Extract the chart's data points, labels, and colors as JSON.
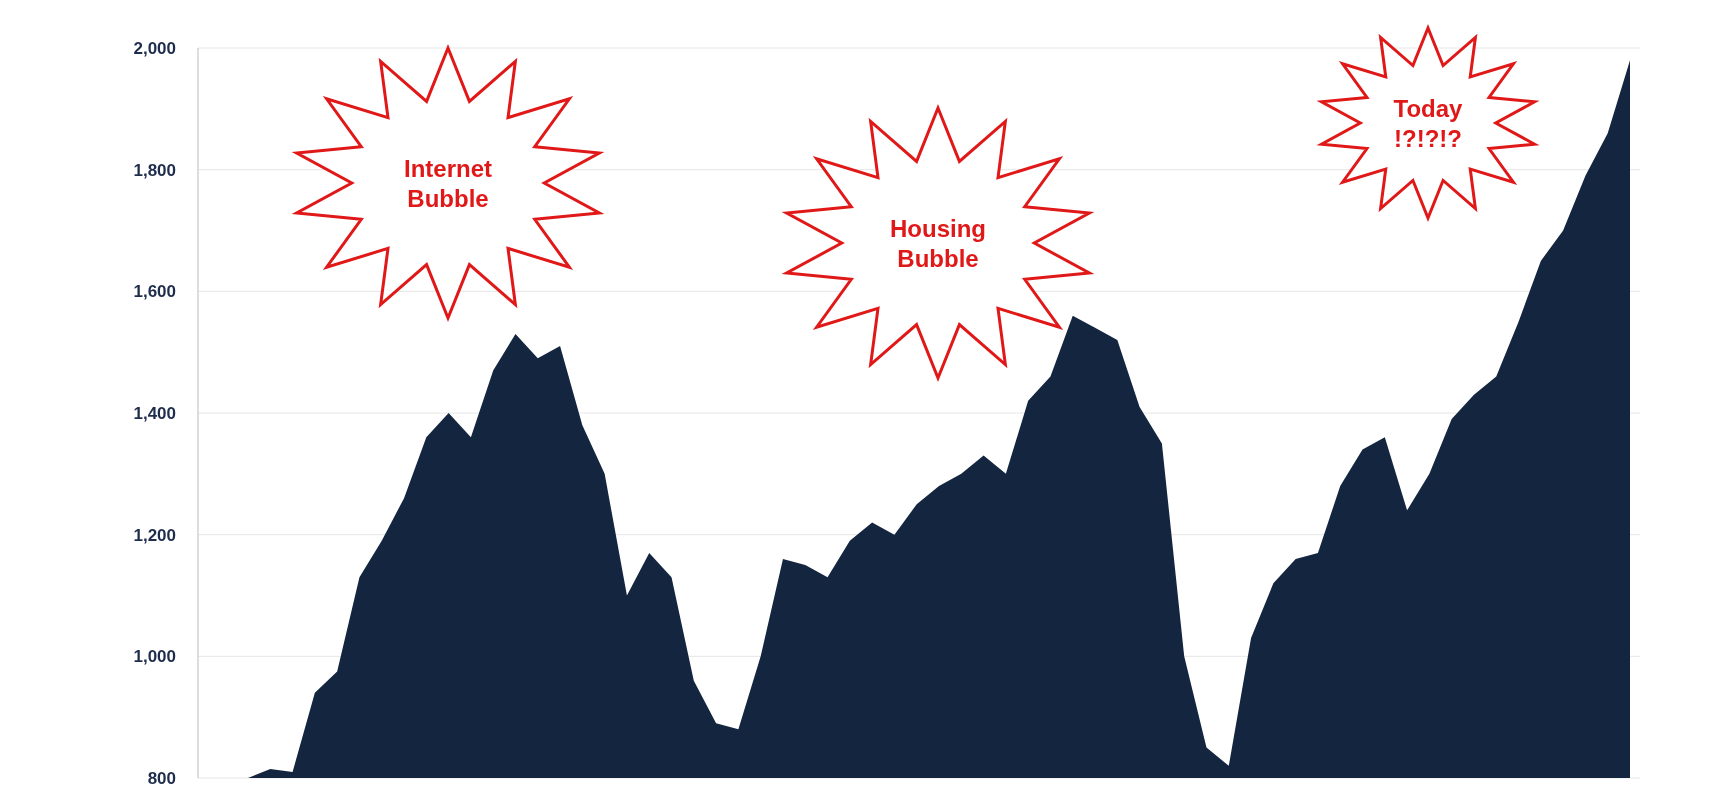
{
  "chart_data": {
    "type": "area",
    "categories": [
      null,
      null,
      null,
      null,
      null,
      null,
      null,
      null,
      null,
      null,
      null,
      null,
      null,
      null,
      null,
      null,
      null,
      null,
      null,
      null,
      null,
      null,
      null,
      null,
      null,
      null,
      null,
      null,
      null,
      null,
      null,
      null,
      null,
      null,
      null,
      null,
      null,
      null,
      null,
      null,
      null,
      null,
      null,
      null,
      null,
      null,
      null,
      null,
      null,
      null,
      null,
      null,
      null,
      null,
      null,
      null,
      null,
      null,
      null,
      null,
      null,
      null,
      null
    ],
    "values": [
      800,
      815,
      810,
      940,
      975,
      1130,
      1190,
      1260,
      1360,
      1400,
      1360,
      1470,
      1530,
      1490,
      1510,
      1380,
      1300,
      1100,
      1170,
      1130,
      960,
      890,
      880,
      1000,
      1160,
      1150,
      1130,
      1190,
      1220,
      1200,
      1250,
      1280,
      1300,
      1330,
      1300,
      1420,
      1460,
      1560,
      1540,
      1520,
      1410,
      1350,
      1000,
      850,
      820,
      1030,
      1120,
      1160,
      1170,
      1280,
      1340,
      1360,
      1240,
      1300,
      1390,
      1430,
      1460,
      1550,
      1650,
      1700,
      1790,
      1860,
      1980
    ],
    "color": "#14253f",
    "ylim": [
      800,
      2000
    ],
    "yticks": [
      {
        "value": 800,
        "label": "800"
      },
      {
        "value": 1000,
        "label": "1,000"
      },
      {
        "value": 1200,
        "label": "1,200"
      },
      {
        "value": 1400,
        "label": "1,400"
      },
      {
        "value": 1600,
        "label": "1,600"
      },
      {
        "value": 1800,
        "label": "1,800"
      },
      {
        "value": 2000,
        "label": "2,000"
      }
    ],
    "grid": "y",
    "tick_labels": "y",
    "annotations": [
      "Internet Bubble",
      "Housing Bubble",
      "Today !?!?!?"
    ]
  }
}
